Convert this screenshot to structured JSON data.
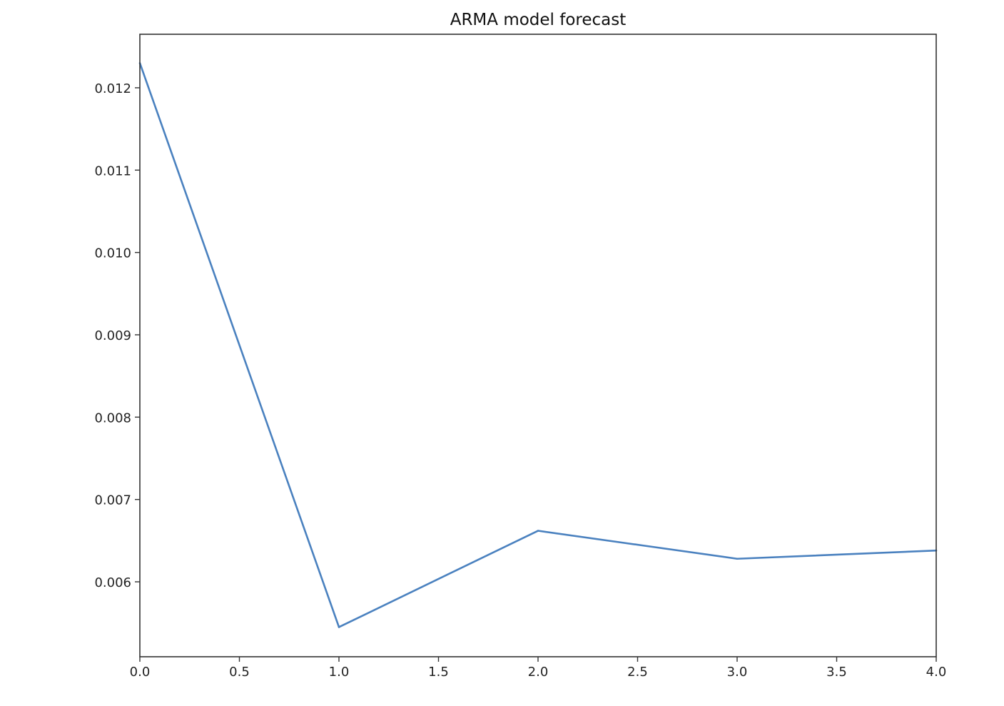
{
  "chart_data": {
    "type": "line",
    "title": "ARMA model forecast",
    "xlabel": "",
    "ylabel": "",
    "xlim": [
      0.0,
      4.0
    ],
    "ylim": [
      0.00509,
      0.01265
    ],
    "xticks": [
      "0.0",
      "0.5",
      "1.0",
      "1.5",
      "2.0",
      "2.5",
      "3.0",
      "3.5",
      "4.0"
    ],
    "yticks": [
      "0.006",
      "0.007",
      "0.008",
      "0.009",
      "0.010",
      "0.011",
      "0.012"
    ],
    "grid": false,
    "series": [
      {
        "x": [
          0,
          1,
          2,
          3,
          4
        ],
        "values": [
          0.0123,
          0.00545,
          0.00662,
          0.00628,
          0.00638
        ],
        "color": "#4a81bf"
      }
    ]
  }
}
